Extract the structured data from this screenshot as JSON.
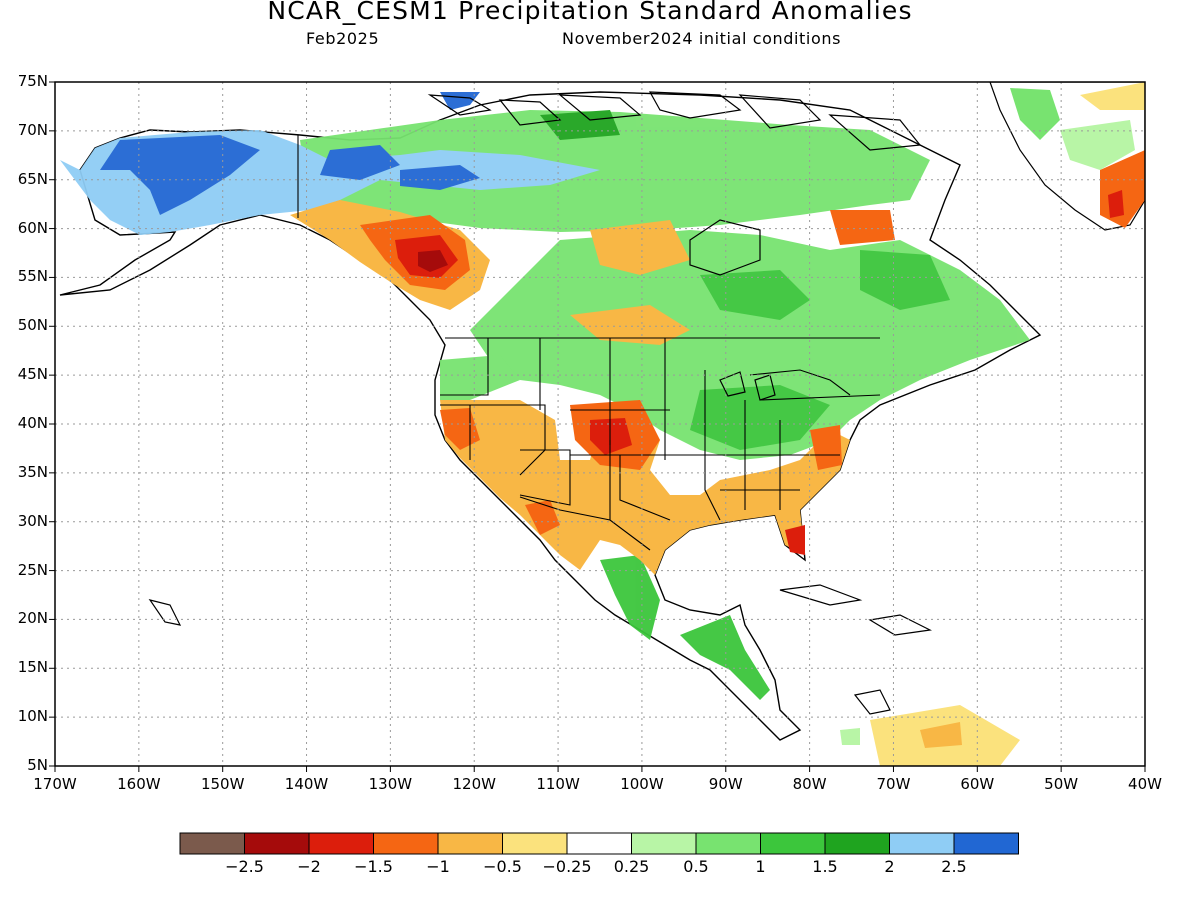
{
  "title": "NCAR_CESM1 Precipitation Standard Anomalies",
  "subtitle_left": "Feb2025",
  "subtitle_right": "November2024 initial conditions",
  "lat_labels": [
    "75N",
    "70N",
    "65N",
    "60N",
    "55N",
    "50N",
    "45N",
    "40N",
    "35N",
    "30N",
    "25N",
    "20N",
    "15N",
    "10N",
    "5N"
  ],
  "lon_labels": [
    "170W",
    "160W",
    "150W",
    "140W",
    "130W",
    "120W",
    "110W",
    "100W",
    "90W",
    "80W",
    "70W",
    "60W",
    "50W",
    "40W"
  ],
  "colorbar": {
    "colors": [
      "#7b5a4c",
      "#a50b0b",
      "#dc1e0c",
      "#f56613",
      "#f8b745",
      "#fbe27d",
      "#ffffff",
      "#b8f5a6",
      "#78e370",
      "#3cc63c",
      "#1fa41f",
      "#8fcdf5",
      "#2167d3"
    ],
    "labels": [
      "−2.5",
      "−2",
      "−1.5",
      "−1",
      "−0.5",
      "−0.25",
      "0.25",
      "0.5",
      "1",
      "1.5",
      "2",
      "2.5"
    ]
  }
}
